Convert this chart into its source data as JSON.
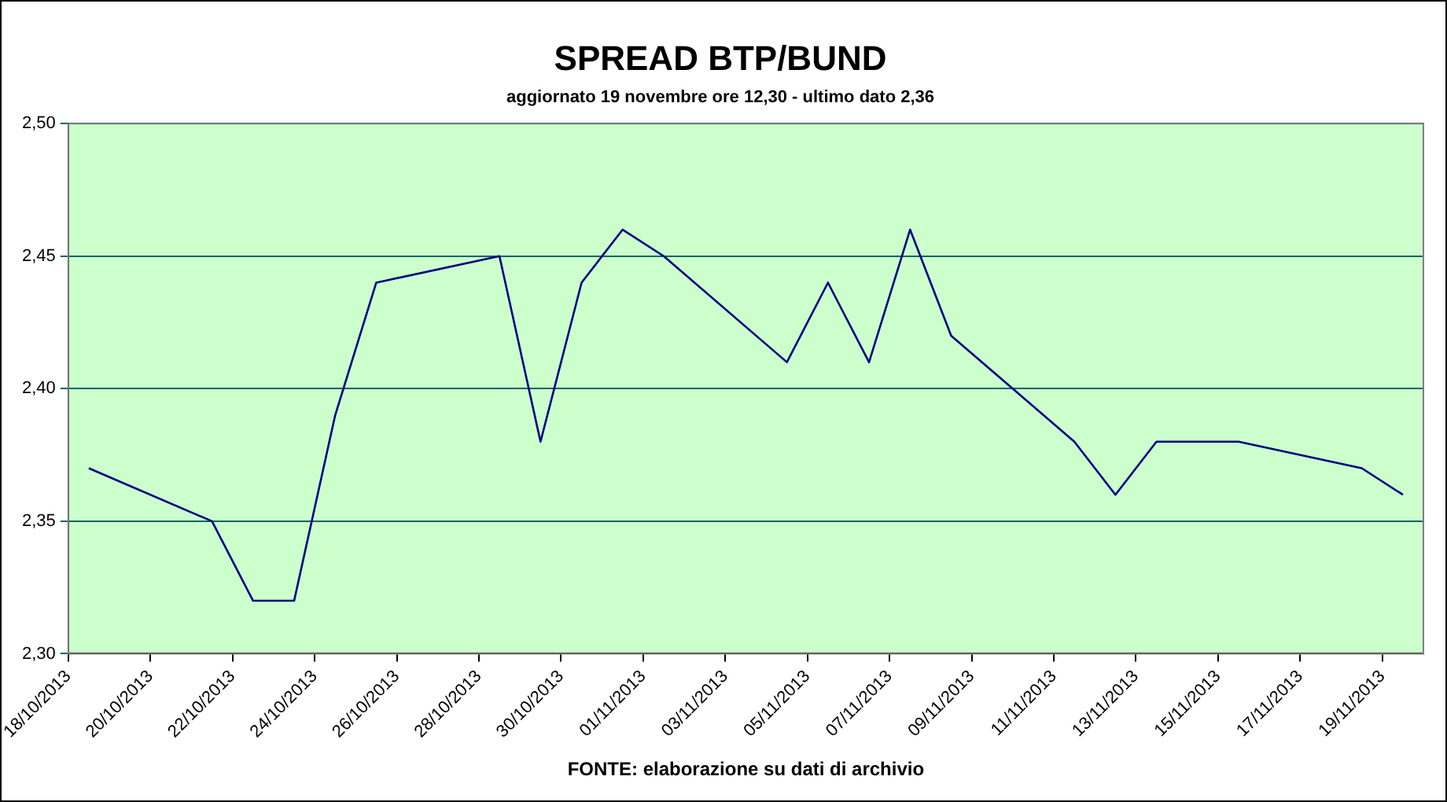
{
  "chart_data": {
    "type": "line",
    "title": "SPREAD BTP/BUND",
    "subtitle": "aggiornato 19 novembre ore 12,30 - ultimo dato 2,36",
    "annotations": [
      "FONTE: elaborazione su dati di archivio"
    ],
    "x": [
      "2013-10-18T12:00",
      "2013-10-21T12:00",
      "2013-10-22T12:00",
      "2013-10-23T12:00",
      "2013-10-24T12:00",
      "2013-10-25T12:00",
      "2013-10-28T12:00",
      "2013-10-29T12:00",
      "2013-10-30T12:00",
      "2013-10-31T12:00",
      "2013-11-01T12:00",
      "2013-11-04T12:00",
      "2013-11-05T12:00",
      "2013-11-06T12:00",
      "2013-11-07T12:00",
      "2013-11-08T12:00",
      "2013-11-11T12:00",
      "2013-11-12T12:00",
      "2013-11-13T12:00",
      "2013-11-14T12:00",
      "2013-11-15T12:00",
      "2013-11-18T12:00",
      "2013-11-19T12:00"
    ],
    "series": [
      {
        "color": "#000080",
        "values": [
          2.37,
          2.35,
          2.32,
          2.32,
          2.39,
          2.44,
          2.45,
          2.38,
          2.44,
          2.46,
          2.45,
          2.41,
          2.44,
          2.41,
          2.46,
          2.42,
          2.38,
          2.36,
          2.38,
          2.38,
          2.38,
          2.37,
          2.36
        ]
      }
    ],
    "xlim": [
      "2013-10-18",
      "2013-11-20"
    ],
    "xticks": [
      {
        "value": "2013-10-18",
        "label": "18/10/2013"
      },
      {
        "value": "2013-10-20",
        "label": "20/10/2013"
      },
      {
        "value": "2013-10-22",
        "label": "22/10/2013"
      },
      {
        "value": "2013-10-24",
        "label": "24/10/2013"
      },
      {
        "value": "2013-10-26",
        "label": "26/10/2013"
      },
      {
        "value": "2013-10-28",
        "label": "28/10/2013"
      },
      {
        "value": "2013-10-30",
        "label": "30/10/2013"
      },
      {
        "value": "2013-11-01",
        "label": "01/11/2013"
      },
      {
        "value": "2013-11-03",
        "label": "03/11/2013"
      },
      {
        "value": "2013-11-05",
        "label": "05/11/2013"
      },
      {
        "value": "2013-11-07",
        "label": "07/11/2013"
      },
      {
        "value": "2013-11-09",
        "label": "09/11/2013"
      },
      {
        "value": "2013-11-11",
        "label": "11/11/2013"
      },
      {
        "value": "2013-11-13",
        "label": "13/11/2013"
      },
      {
        "value": "2013-11-15",
        "label": "15/11/2013"
      },
      {
        "value": "2013-11-17",
        "label": "17/11/2013"
      },
      {
        "value": "2013-11-19",
        "label": "19/11/2013"
      }
    ],
    "ylim": [
      2.3,
      2.5
    ],
    "yticks": [
      {
        "value": 2.3,
        "label": "2,30"
      },
      {
        "value": 2.35,
        "label": "2,35"
      },
      {
        "value": 2.4,
        "label": "2,40"
      },
      {
        "value": 2.45,
        "label": "2,45"
      },
      {
        "value": 2.5,
        "label": "2,50"
      }
    ],
    "grid": "y",
    "legend": false,
    "marker": "none",
    "line_style": "solid"
  }
}
